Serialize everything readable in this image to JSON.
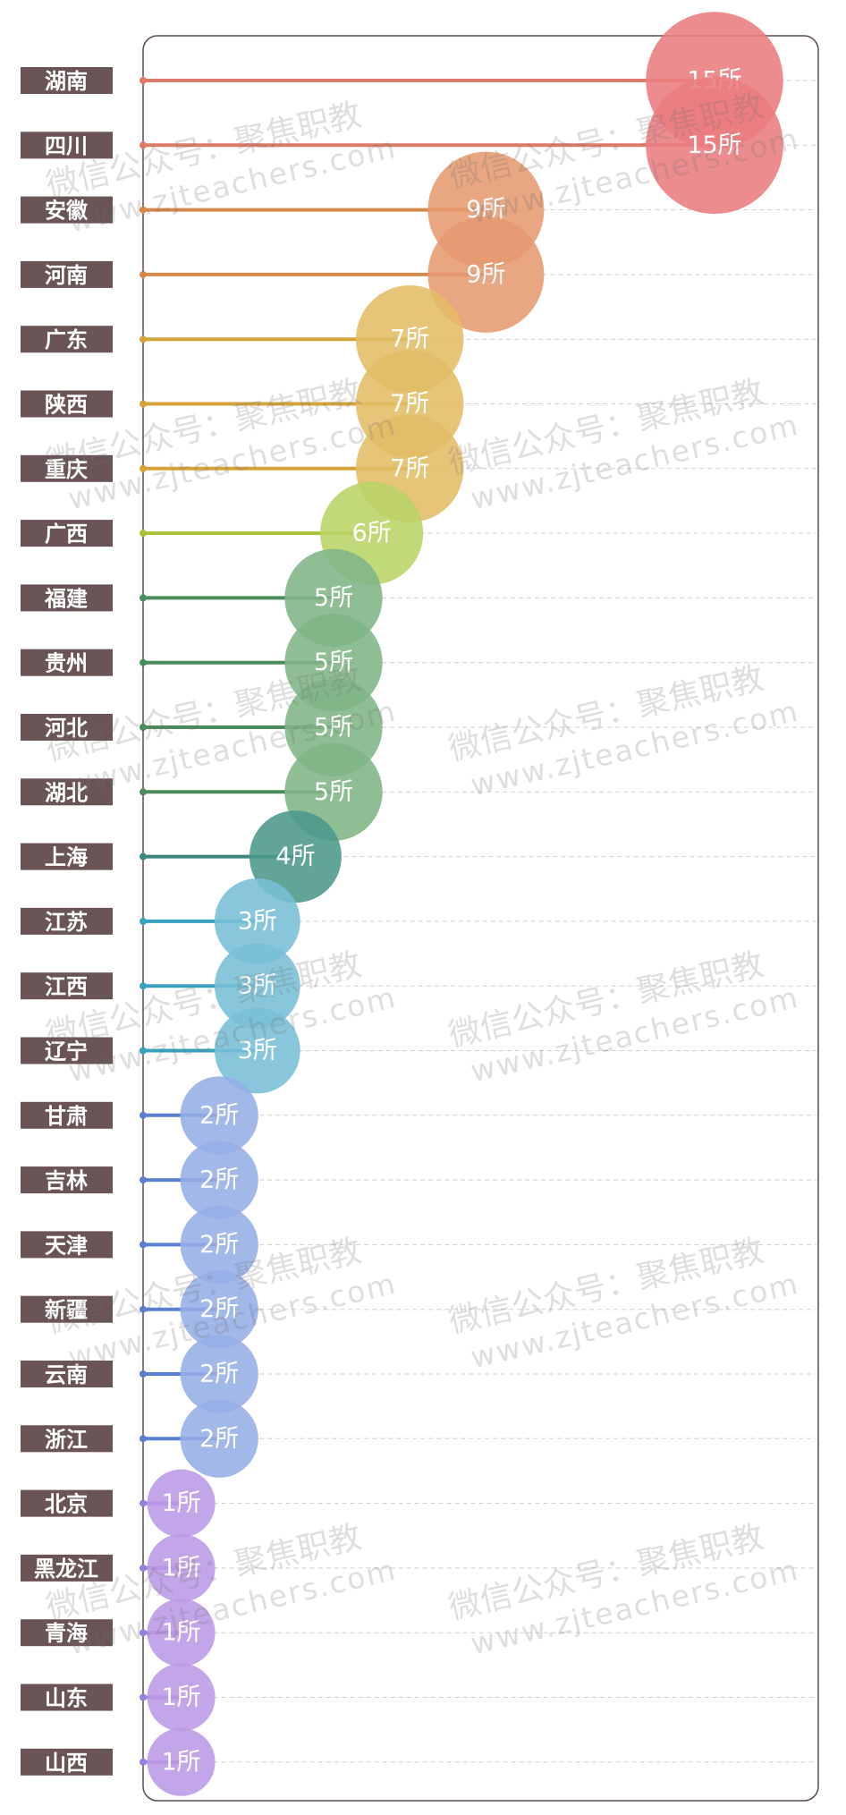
{
  "chart_data": {
    "type": "bubble-lollipop",
    "unit_suffix": "所",
    "categories": [
      "湖南",
      "四川",
      "安徽",
      "河南",
      "广东",
      "陕西",
      "重庆",
      "广西",
      "福建",
      "贵州",
      "河北",
      "湖北",
      "上海",
      "江苏",
      "江西",
      "辽宁",
      "甘肃",
      "吉林",
      "天津",
      "新疆",
      "云南",
      "浙江",
      "北京",
      "黑龙江",
      "青海",
      "山东",
      "山西"
    ],
    "values": [
      15,
      15,
      9,
      9,
      7,
      7,
      7,
      6,
      5,
      5,
      5,
      5,
      4,
      3,
      3,
      3,
      2,
      2,
      2,
      2,
      2,
      2,
      1,
      1,
      1,
      1,
      1
    ],
    "labels": [
      "15所",
      "15所",
      "9所",
      "9所",
      "7所",
      "7所",
      "7所",
      "6所",
      "5所",
      "5所",
      "5所",
      "5所",
      "4所",
      "3所",
      "3所",
      "3所",
      "2所",
      "2所",
      "2所",
      "2所",
      "2所",
      "2所",
      "1所",
      "1所",
      "1所",
      "1所",
      "1所"
    ],
    "xlim": [
      0,
      16
    ],
    "colors": {
      "15": "#ea7c80",
      "9": "#e59a6f",
      "7": "#e2bd66",
      "6": "#b9d466",
      "5": "#7fb586",
      "4": "#4b998b",
      "3": "#77bfd6",
      "2": "#95aee6",
      "1": "#ba9ae6"
    },
    "line_colors": {
      "15": "#dc7a68",
      "9": "#d6874a",
      "7": "#d4a43a",
      "6": "#a8c23a",
      "5": "#4a8c5c",
      "4": "#3d8581",
      "3": "#3aa0c0",
      "2": "#5b7fd0",
      "1": "#9a7fdc"
    },
    "label_bg": "#6a5456",
    "frame_color": "#5a4a4a",
    "grid": true
  },
  "watermark": {
    "line1": "微信公众号：聚焦职教",
    "line2": "www.zjteachers.com"
  }
}
